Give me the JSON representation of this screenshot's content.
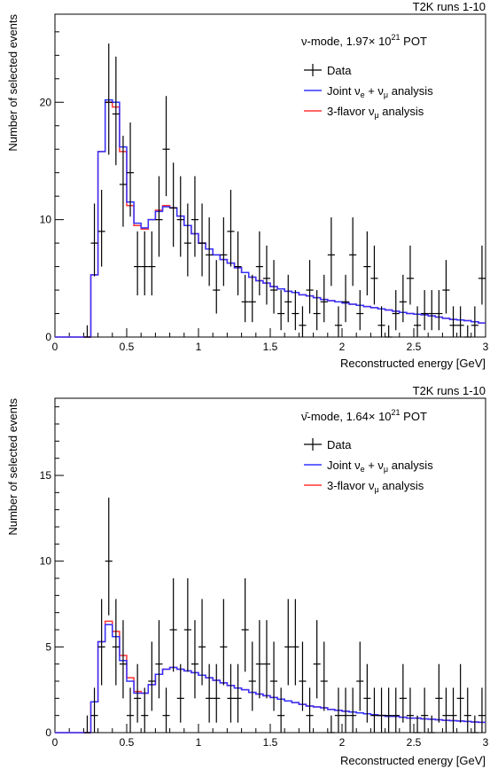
{
  "chart_data": [
    {
      "type": "line",
      "corner_label": "T2K runs 1-10",
      "mode_label_sym": "ν",
      "mode_label_rest": "-mode, 1.97× 10",
      "mode_label_sup": "21",
      "mode_label_unit": " POT",
      "xlabel": "Reconstructed energy [GeV]",
      "ylabel": "Number of selected events",
      "xlim": [
        0,
        3
      ],
      "ylim": [
        0,
        27.5
      ],
      "xticks": [
        "0",
        "0.5",
        "1",
        "1.5",
        "2",
        "2.5",
        "3"
      ],
      "yticks": [
        "0",
        "10",
        "20"
      ],
      "legend": [
        {
          "name": "Data",
          "color": "#000000"
        },
        {
          "name": "Joint νe + νμ analysis",
          "color": "#3333ff"
        },
        {
          "name": "3-flavor νμ analysis",
          "color": "#ff3333"
        }
      ],
      "bin_width": 0.05,
      "data_x": [
        0.225,
        0.275,
        0.325,
        0.375,
        0.425,
        0.475,
        0.525,
        0.575,
        0.625,
        0.675,
        0.725,
        0.775,
        0.825,
        0.875,
        0.925,
        0.975,
        1.025,
        1.075,
        1.125,
        1.175,
        1.225,
        1.275,
        1.325,
        1.375,
        1.425,
        1.475,
        1.525,
        1.575,
        1.625,
        1.675,
        1.725,
        1.775,
        1.825,
        1.875,
        1.925,
        1.975,
        2.025,
        2.075,
        2.125,
        2.175,
        2.225,
        2.275,
        2.325,
        2.375,
        2.425,
        2.475,
        2.525,
        2.575,
        2.625,
        2.675,
        2.725,
        2.775,
        2.825,
        2.875,
        2.925,
        2.975
      ],
      "data_y": [
        0,
        8,
        9,
        20,
        19,
        13,
        14,
        6,
        6,
        6,
        10,
        16,
        11,
        10,
        8,
        10,
        8,
        7,
        4,
        7,
        9,
        6,
        3,
        3,
        6,
        5,
        4,
        2,
        3,
        2,
        1,
        4,
        2,
        3,
        7,
        1,
        3,
        7,
        2,
        6,
        5,
        1,
        0,
        2,
        3,
        5,
        1,
        2,
        2,
        2,
        4,
        1,
        1,
        0,
        1,
        5
      ],
      "joint_y": [
        0,
        5.3,
        15.8,
        20.2,
        20.0,
        16.2,
        11.5,
        9.7,
        9.3,
        10.0,
        10.7,
        11.1,
        11.0,
        10.3,
        9.5,
        8.8,
        8.0,
        7.5,
        7.0,
        6.6,
        6.3,
        5.9,
        5.5,
        5.1,
        4.8,
        4.6,
        4.3,
        4.1,
        3.9,
        3.8,
        3.6,
        3.5,
        3.35,
        3.2,
        3.1,
        3.0,
        2.9,
        2.8,
        2.7,
        2.6,
        2.5,
        2.4,
        2.3,
        2.2,
        2.1,
        2.0,
        1.95,
        1.9,
        1.8,
        1.7,
        1.6,
        1.5,
        1.45,
        1.4,
        1.3,
        1.2
      ],
      "flavor_y": [
        0,
        5.3,
        15.8,
        20.0,
        19.6,
        15.8,
        11.2,
        9.5,
        9.2,
        10.0,
        10.8,
        11.2,
        11.0,
        10.3,
        9.5,
        8.8,
        8.0,
        7.5,
        7.0,
        6.6,
        6.3,
        5.9,
        5.5,
        5.1,
        4.8,
        4.6,
        4.3,
        4.1,
        3.9,
        3.8,
        3.6,
        3.5,
        3.35,
        3.2,
        3.1,
        3.0,
        2.9,
        2.8,
        2.7,
        2.6,
        2.5,
        2.4,
        2.3,
        2.2,
        2.1,
        2.0,
        1.95,
        1.9,
        1.8,
        1.7,
        1.6,
        1.5,
        1.45,
        1.4,
        1.3,
        1.2
      ]
    },
    {
      "type": "line",
      "corner_label": "T2K runs 1-10",
      "mode_label_sym": "ν̄",
      "mode_label_rest": "-mode, 1.64× 10",
      "mode_label_sup": "21",
      "mode_label_unit": " POT",
      "xlabel": "Reconstructed energy [GeV]",
      "ylabel": "Number of selected events",
      "xlim": [
        0,
        3
      ],
      "ylim": [
        0,
        19.5
      ],
      "xticks": [
        "0",
        "0.5",
        "1",
        "1.5",
        "2",
        "2.5",
        "3"
      ],
      "yticks": [
        "0",
        "5",
        "10",
        "15"
      ],
      "legend": [
        {
          "name": "Data",
          "color": "#000000"
        },
        {
          "name": "Joint νe + νμ analysis",
          "color": "#3333ff"
        },
        {
          "name": "3-flavor νμ analysis",
          "color": "#ff3333"
        }
      ],
      "bin_width": 0.05,
      "data_x": [
        0.225,
        0.275,
        0.325,
        0.375,
        0.425,
        0.475,
        0.525,
        0.575,
        0.625,
        0.675,
        0.725,
        0.775,
        0.825,
        0.875,
        0.925,
        0.975,
        1.025,
        1.075,
        1.125,
        1.175,
        1.225,
        1.275,
        1.325,
        1.375,
        1.425,
        1.475,
        1.525,
        1.575,
        1.625,
        1.675,
        1.725,
        1.775,
        1.825,
        1.875,
        1.925,
        1.975,
        2.025,
        2.075,
        2.125,
        2.175,
        2.225,
        2.275,
        2.325,
        2.375,
        2.425,
        2.475,
        2.525,
        2.575,
        2.625,
        2.675,
        2.725,
        2.775,
        2.825,
        2.875,
        2.925,
        2.975
      ],
      "data_y": [
        0,
        1,
        5,
        10,
        5,
        4,
        1,
        2,
        1,
        3,
        4,
        1,
        6,
        2,
        6,
        4,
        5,
        2,
        2,
        5,
        2,
        2,
        6,
        3,
        4,
        4,
        3,
        1,
        5,
        5,
        3,
        1,
        4,
        3,
        0,
        1,
        1,
        1,
        3,
        2,
        1,
        1,
        1,
        1,
        2,
        1,
        0,
        1,
        0,
        2,
        1,
        1,
        2,
        1,
        0,
        1
      ],
      "joint_y": [
        0,
        1.8,
        5.3,
        6.3,
        5.6,
        4.2,
        3.0,
        2.3,
        2.3,
        2.8,
        3.4,
        3.7,
        3.8,
        3.7,
        3.6,
        3.5,
        3.35,
        3.2,
        3.05,
        2.9,
        2.75,
        2.6,
        2.5,
        2.35,
        2.25,
        2.15,
        2.05,
        1.95,
        1.85,
        1.75,
        1.65,
        1.55,
        1.5,
        1.45,
        1.35,
        1.3,
        1.25,
        1.2,
        1.15,
        1.1,
        1.05,
        1.0,
        0.95,
        0.95,
        0.9,
        0.85,
        0.85,
        0.8,
        0.78,
        0.75,
        0.72,
        0.7,
        0.68,
        0.65,
        0.62,
        0.6
      ],
      "flavor_y": [
        0,
        1.8,
        5.3,
        6.5,
        5.9,
        4.5,
        3.2,
        2.4,
        2.3,
        2.8,
        3.4,
        3.7,
        3.8,
        3.7,
        3.6,
        3.5,
        3.35,
        3.2,
        3.05,
        2.9,
        2.75,
        2.6,
        2.5,
        2.35,
        2.25,
        2.15,
        2.05,
        1.95,
        1.85,
        1.75,
        1.65,
        1.55,
        1.5,
        1.45,
        1.35,
        1.3,
        1.25,
        1.2,
        1.15,
        1.1,
        1.05,
        1.0,
        0.95,
        0.95,
        0.9,
        0.85,
        0.85,
        0.8,
        0.78,
        0.75,
        0.72,
        0.7,
        0.68,
        0.65,
        0.62,
        0.6
      ]
    }
  ]
}
